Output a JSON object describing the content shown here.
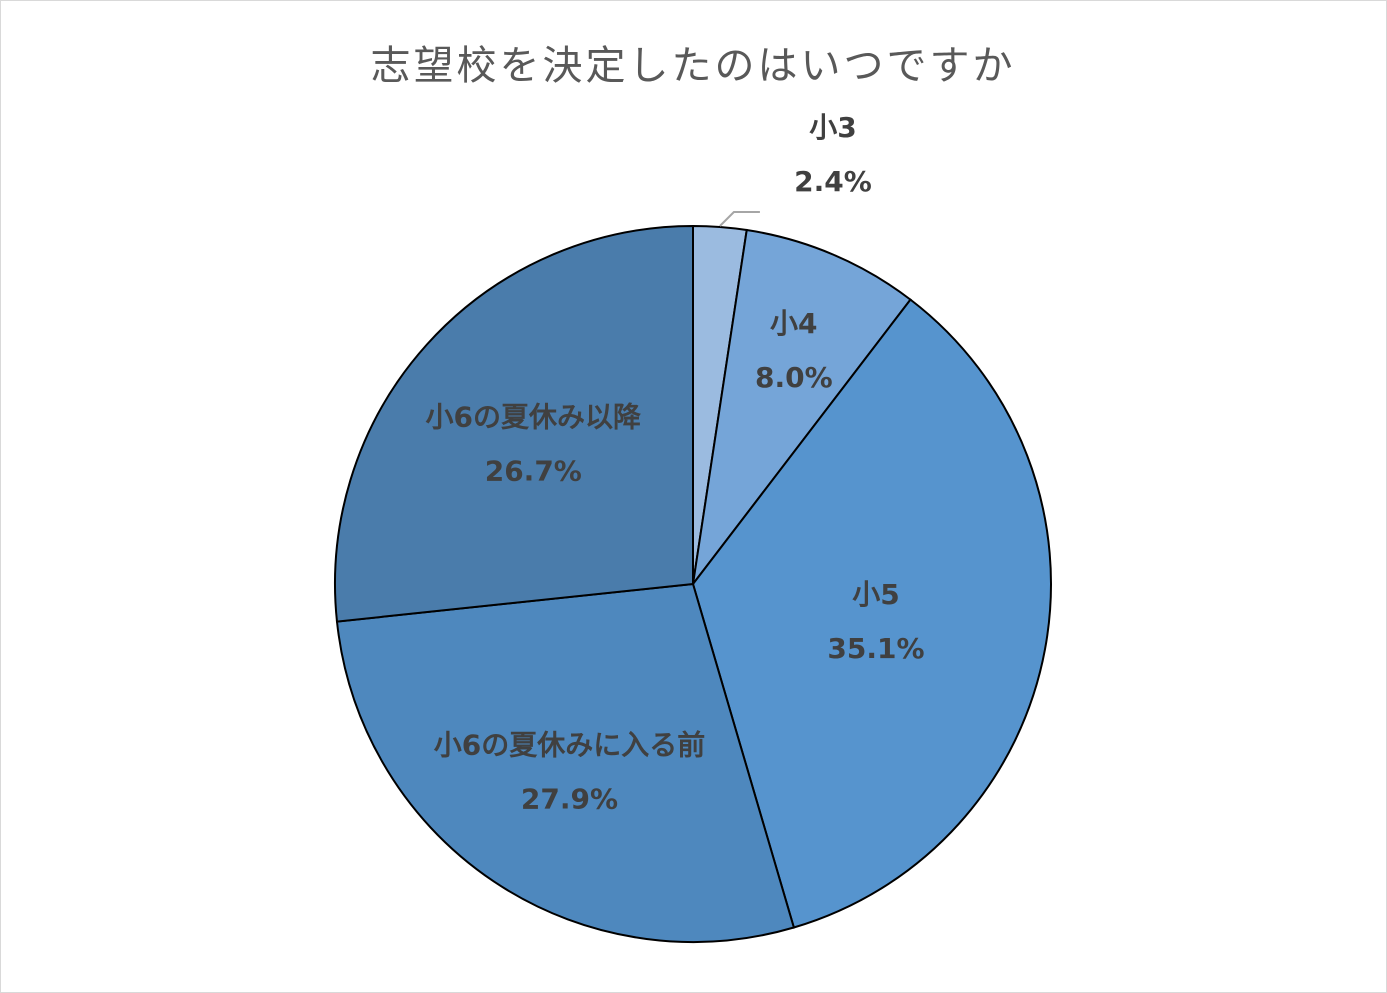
{
  "chart_data": {
    "type": "pie",
    "title": "志望校を決定したのはいつですか",
    "start_angle_deg": 0,
    "direction": "clockwise",
    "slices": [
      {
        "label": "小3",
        "value": 2.4,
        "display": "2.4%",
        "color": "#9BBBE0"
      },
      {
        "label": "小4",
        "value": 8.0,
        "display": "8.0%",
        "color": "#75A5D8"
      },
      {
        "label": "小5",
        "value": 35.1,
        "display": "35.1%",
        "color": "#5694CE"
      },
      {
        "label": "小6の夏休みに入る前",
        "value": 27.9,
        "display": "27.9%",
        "color": "#4E88BE"
      },
      {
        "label": "小6の夏休み以降",
        "value": 26.7,
        "display": "26.7%",
        "color": "#4A7CAB"
      }
    ]
  }
}
